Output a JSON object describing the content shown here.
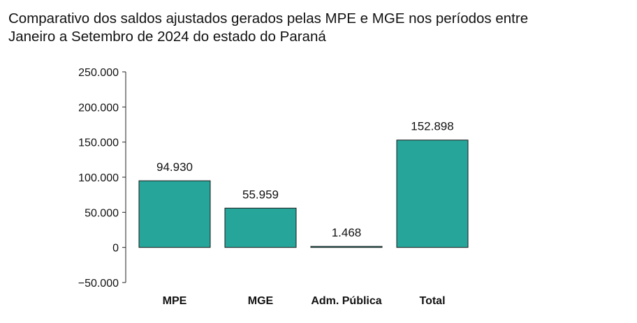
{
  "chart_data": {
    "type": "bar",
    "title_line1": "Comparativo dos saldos ajustados gerados pelas MPE e MGE nos períodos entre",
    "title_line2": "Janeiro a Setembro de 2024 do estado do Paraná",
    "categories": [
      "MPE",
      "MGE",
      "Adm. Pública",
      "Total"
    ],
    "values": [
      94930,
      55959,
      1468,
      152898
    ],
    "value_labels": [
      "94.930",
      "55.959",
      "1.468",
      "152.898"
    ],
    "y_ticks": [
      250000,
      200000,
      150000,
      100000,
      50000,
      0,
      -50000
    ],
    "y_tick_labels": [
      "250.000",
      "200.000",
      "150.000",
      "100.000",
      "50.000",
      "0",
      "−50.000"
    ],
    "ylim": [
      -50000,
      250000
    ],
    "xlabel": "",
    "ylabel": "",
    "grid": false,
    "legend": "none",
    "bar_color": "#26a69a",
    "bar_stroke": "#1a1a1a"
  }
}
